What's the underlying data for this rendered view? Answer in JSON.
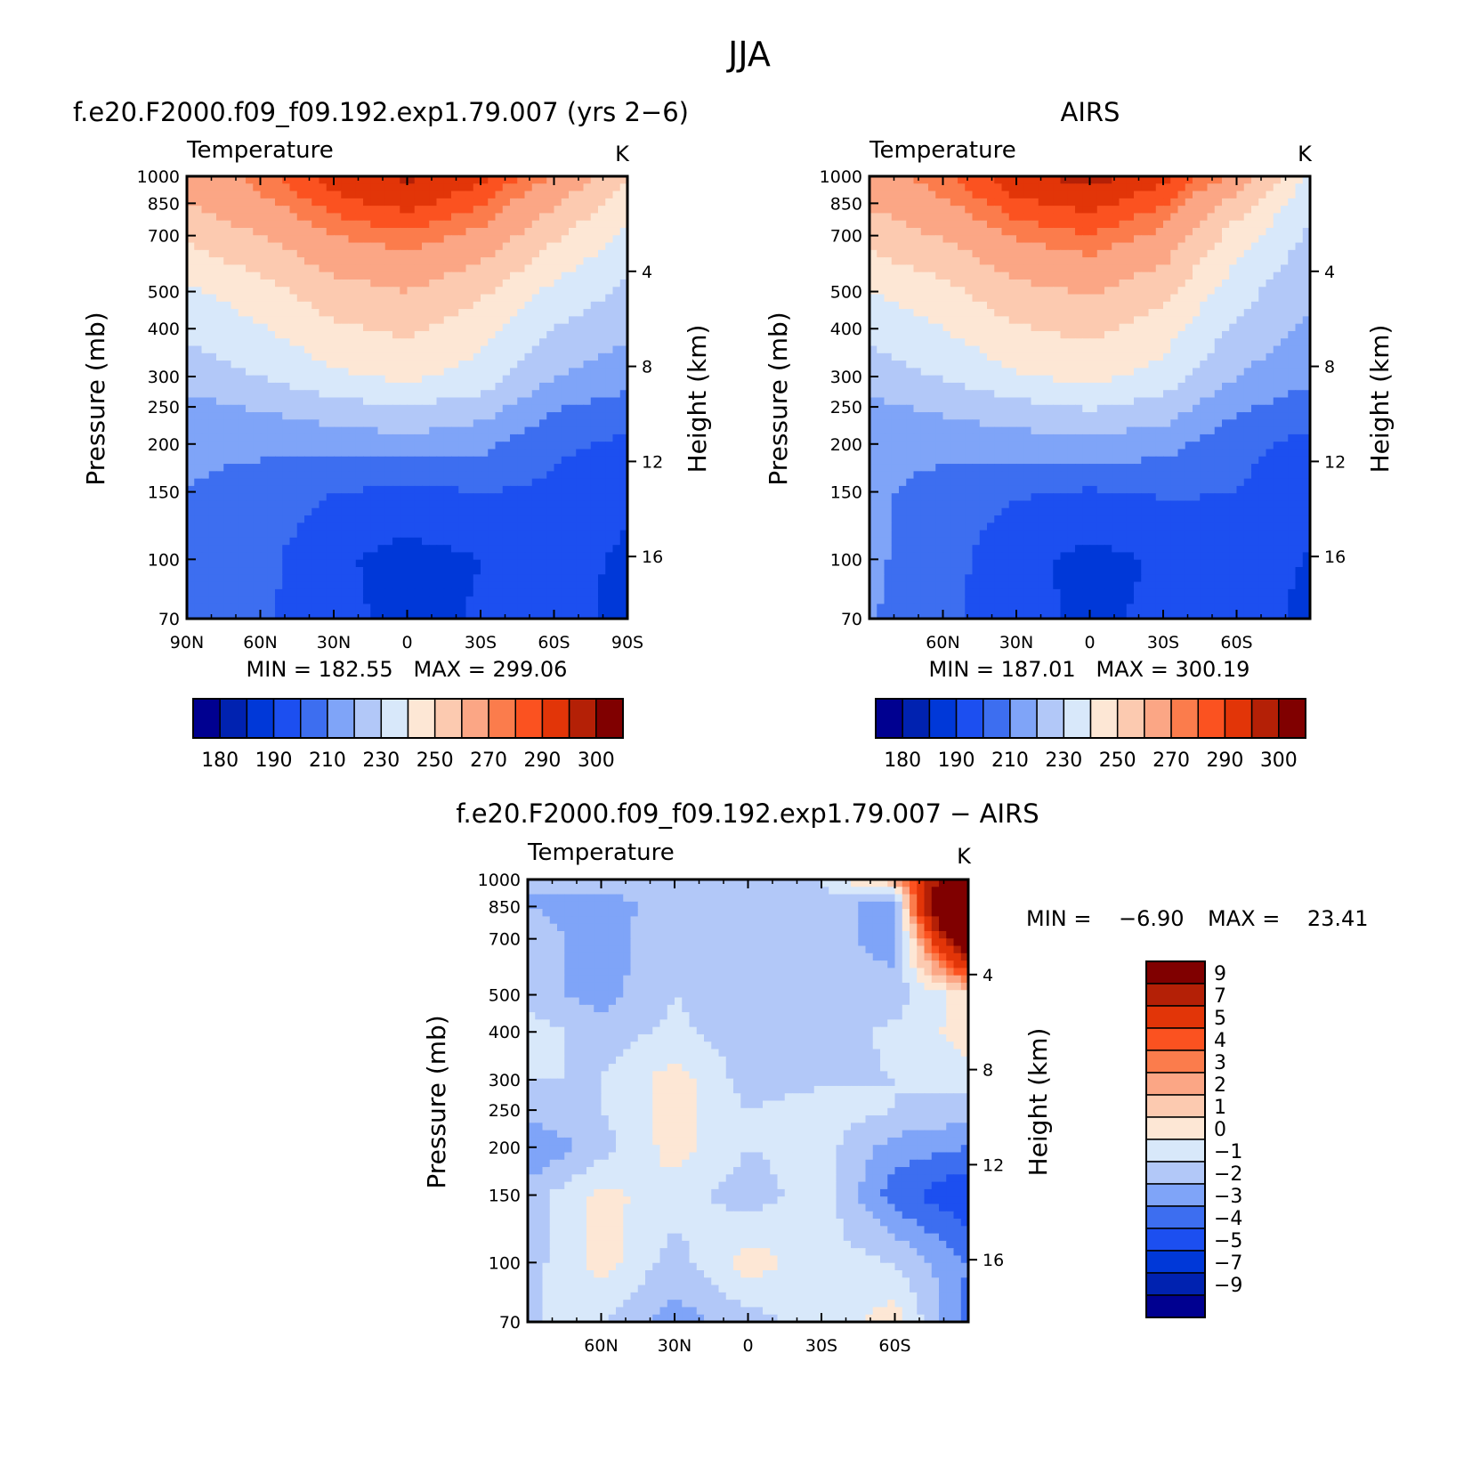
{
  "figure_title": "JJA",
  "colors": {
    "abs_palette": [
      "#000090",
      "#0022b0",
      "#0038d8",
      "#1c4ff0",
      "#3d6ef0",
      "#7fa4f8",
      "#b2c8f8",
      "#d8e8fa",
      "#fde7d5",
      "#fccab0",
      "#fba685",
      "#fb7c4c",
      "#fb5220",
      "#e23508",
      "#b42006",
      "#800000"
    ],
    "diff_palette": [
      "#000090",
      "#0022b0",
      "#0038d8",
      "#1c4ff0",
      "#3d6ef0",
      "#7fa4f8",
      "#b2c8f8",
      "#d8e8fa",
      "#fde7d5",
      "#fccab0",
      "#fba685",
      "#fb7c4c",
      "#fb5220",
      "#e23508",
      "#b42006",
      "#800000"
    ]
  },
  "panels": [
    {
      "title": "f.e20.F2000.f09_f09.192.exp1.79.007 (yrs 2−6)",
      "subtitle": "Temperature",
      "units": "K",
      "left_axis_label": "Pressure (mb)",
      "right_axis_label": "Height (km)",
      "stats": "MIN = 182.55   MAX = 299.06",
      "xticks": [
        "90N",
        "60N",
        "30N",
        "0",
        "30S",
        "60S",
        "90S"
      ],
      "colorbar_labels": [
        "180",
        "190",
        "210",
        "230",
        "250",
        "270",
        "290",
        "300"
      ]
    },
    {
      "title": "AIRS",
      "subtitle": "Temperature",
      "units": "K",
      "left_axis_label": "Pressure (mb)",
      "right_axis_label": "Height (km)",
      "stats": "MIN = 187.01   MAX = 300.19",
      "xticks": [
        "60N",
        "30N",
        "0",
        "30S",
        "60S"
      ],
      "colorbar_labels": [
        "180",
        "190",
        "210",
        "230",
        "250",
        "270",
        "290",
        "300"
      ]
    },
    {
      "title": "f.e20.F2000.f09_f09.192.exp1.79.007 − AIRS",
      "subtitle": "Temperature",
      "units": "K",
      "left_axis_label": "Pressure (mb)",
      "right_axis_label": "Height (km)",
      "stats_min": "MIN =    −6.90",
      "stats_max": "MAX =    23.41",
      "xticks": [
        "60N",
        "30N",
        "0",
        "30S",
        "60S"
      ],
      "colorbar_labels": [
        "9",
        "7",
        "5",
        "4",
        "3",
        "2",
        "1",
        "0",
        "−1",
        "−2",
        "−3",
        "−4",
        "−5",
        "−7",
        "−9"
      ]
    }
  ],
  "chart_data": [
    {
      "type": "heatmap",
      "title": "f.e20.F2000.f09_f09.192.exp1.79.007 (yrs 2−6)",
      "subtitle": "Temperature",
      "units": "K",
      "x": [
        90,
        60,
        30,
        0,
        -30,
        -60,
        -90
      ],
      "x_tick_labels": [
        "90N",
        "60N",
        "30N",
        "0",
        "30S",
        "60S",
        "90S"
      ],
      "xlim": [
        90,
        -90
      ],
      "pressure_levels_mb": [
        1000,
        850,
        700,
        500,
        400,
        300,
        250,
        200,
        150,
        100,
        70
      ],
      "pressure_scale": "log",
      "ylim": [
        1000,
        70
      ],
      "height_km_ticks": [
        4,
        8,
        12,
        16
      ],
      "values_K": [
        [
          273,
          283,
          293,
          296,
          292,
          280,
          262
        ],
        [
          270,
          278,
          288,
          292,
          286,
          271,
          254
        ],
        [
          262,
          270,
          280,
          284,
          278,
          262,
          248
        ],
        [
          248,
          256,
          266,
          270,
          262,
          247,
          238
        ],
        [
          242,
          249,
          258,
          262,
          254,
          240,
          232
        ],
        [
          234,
          240,
          248,
          252,
          246,
          230,
          224
        ],
        [
          227,
          231,
          236,
          240,
          235,
          221,
          216
        ],
        [
          222,
          222,
          224,
          226,
          223,
          212,
          208
        ],
        [
          220,
          216,
          210,
          208,
          210,
          208,
          202
        ],
        [
          219,
          213,
          202,
          196,
          200,
          205,
          198
        ],
        [
          218,
          212,
          203,
          197,
          201,
          206,
          195
        ]
      ],
      "min": 182.55,
      "max": 299.06,
      "colorbar_ticks": [
        180,
        190,
        210,
        230,
        250,
        270,
        290,
        300
      ]
    },
    {
      "type": "heatmap",
      "title": "AIRS",
      "subtitle": "Temperature",
      "units": "K",
      "x": [
        90,
        60,
        30,
        0,
        -30,
        -60,
        -90
      ],
      "x_tick_labels": [
        "60N",
        "30N",
        "0",
        "30S",
        "60S"
      ],
      "xlim": [
        90,
        -90
      ],
      "pressure_levels_mb": [
        1000,
        850,
        700,
        500,
        400,
        300,
        250,
        200,
        150,
        100,
        70
      ],
      "pressure_scale": "log",
      "ylim": [
        1000,
        70
      ],
      "height_km_ticks": [
        4,
        8,
        12,
        16
      ],
      "values_K": [
        [
          275,
          284,
          294,
          297,
          292,
          278,
          248
        ],
        [
          271,
          279,
          289,
          292,
          286,
          266,
          242
        ],
        [
          264,
          271,
          281,
          285,
          278,
          255,
          238
        ],
        [
          250,
          257,
          267,
          271,
          263,
          244,
          232
        ],
        [
          243,
          250,
          259,
          263,
          255,
          238,
          228
        ],
        [
          235,
          241,
          249,
          253,
          246,
          230,
          222
        ],
        [
          228,
          232,
          237,
          241,
          236,
          222,
          215
        ],
        [
          223,
          223,
          225,
          227,
          224,
          213,
          207
        ],
        [
          222,
          216,
          211,
          209,
          211,
          210,
          203
        ],
        [
          222,
          214,
          203,
          197,
          201,
          207,
          199
        ],
        [
          221,
          213,
          203,
          198,
          202,
          208,
          196
        ]
      ],
      "min": 187.01,
      "max": 300.19,
      "colorbar_ticks": [
        180,
        190,
        210,
        230,
        250,
        270,
        290,
        300
      ]
    },
    {
      "type": "heatmap",
      "title": "f.e20.F2000.f09_f09.192.exp1.79.007 − AIRS",
      "subtitle": "Temperature",
      "units": "K",
      "x": [
        90,
        60,
        30,
        0,
        -30,
        -60,
        -90
      ],
      "x_tick_labels": [
        "60N",
        "30N",
        "0",
        "30S",
        "60S"
      ],
      "xlim": [
        90,
        -90
      ],
      "pressure_levels_mb": [
        1000,
        850,
        700,
        500,
        400,
        300,
        250,
        200,
        150,
        100,
        70
      ],
      "pressure_scale": "log",
      "ylim": [
        1000,
        70
      ],
      "height_km_ticks": [
        4,
        8,
        12,
        16
      ],
      "values_K": [
        [
          -2.0,
          -1.5,
          -1.5,
          -1.0,
          -1.0,
          2.0,
          14.0
        ],
        [
          -2.0,
          -2.5,
          -1.5,
          -1.2,
          -1.2,
          -3.0,
          23.0
        ],
        [
          -1.5,
          -2.5,
          -1.2,
          -1.5,
          -1.5,
          -2.5,
          12.0
        ],
        [
          -1.5,
          -2.5,
          -1.0,
          -1.5,
          -1.5,
          -1.5,
          0.5
        ],
        [
          -0.5,
          -1.5,
          -0.8,
          -1.5,
          -1.5,
          -0.8,
          0.5
        ],
        [
          -1.0,
          -1.0,
          0.5,
          -1.5,
          -1.2,
          -1.0,
          -0.5
        ],
        [
          -1.5,
          -1.0,
          0.5,
          -1.0,
          -0.5,
          -1.0,
          -1.5
        ],
        [
          -3.0,
          -1.5,
          0.5,
          -1.0,
          -0.5,
          -2.5,
          -3.0
        ],
        [
          -1.5,
          0.3,
          -0.5,
          -1.5,
          -0.5,
          -3.5,
          -5.0
        ],
        [
          -1.5,
          0.5,
          -1.5,
          0.5,
          -0.5,
          -1.0,
          -3.0
        ],
        [
          -1.0,
          -1.0,
          -2.5,
          -1.5,
          -0.5,
          0.5,
          -3.5
        ]
      ],
      "min": -6.9,
      "max": 23.41,
      "levels": [
        -9,
        -7,
        -5,
        -4,
        -3,
        -2,
        -1,
        0,
        1,
        2,
        3,
        4,
        5,
        7,
        9
      ],
      "colorbar_ticks": [
        9,
        7,
        5,
        4,
        3,
        2,
        1,
        0,
        -1,
        -2,
        -3,
        -4,
        -5,
        -7,
        -9
      ]
    }
  ]
}
